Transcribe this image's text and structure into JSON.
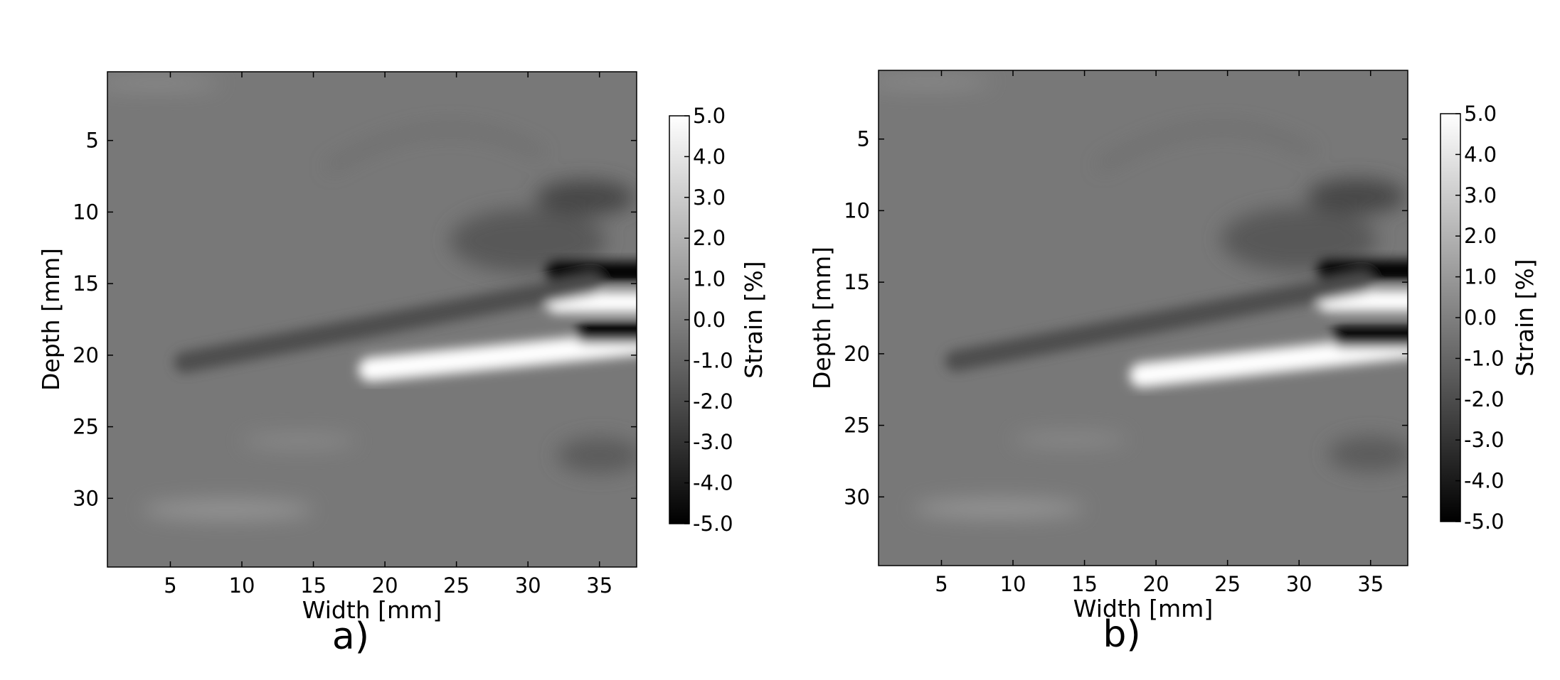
{
  "chart_data": [
    {
      "type": "heatmap",
      "panel_label": "a)",
      "xlabel": "Width [mm]",
      "ylabel": "Depth [mm]",
      "xlim": [
        0.6,
        37.6
      ],
      "ylim": [
        34.8,
        0.2
      ],
      "x_ticks": [
        5,
        10,
        15,
        20,
        25,
        30,
        35
      ],
      "y_ticks": [
        5,
        10,
        15,
        20,
        25,
        30
      ],
      "colorbar": {
        "label": "Strain [%]",
        "range": [
          -5.0,
          5.0
        ],
        "ticks": [
          "5.0",
          "4.0",
          "3.0",
          "2.0",
          "1.0",
          "0.0",
          "-1.0",
          "-2.0",
          "-3.0",
          "-4.0",
          "-5.0"
        ],
        "colormap": "grayscale"
      },
      "features": [
        {
          "kind": "high-strain-band",
          "strain": 5.0,
          "x": [
            19,
            37.6
          ],
          "depth": [
            21,
            19
          ]
        },
        {
          "kind": "high-strain-band",
          "strain": 5.0,
          "x": [
            32,
            37.6
          ],
          "depth": [
            16.3,
            16.3
          ]
        },
        {
          "kind": "low-strain-band",
          "strain": -5.0,
          "x": [
            32,
            37.6
          ],
          "depth": [
            14.2,
            14.2
          ]
        },
        {
          "kind": "low-strain-band",
          "strain": -5.0,
          "x": [
            34,
            37.6
          ],
          "depth": [
            18.4,
            18.4
          ]
        },
        {
          "kind": "negative-layer",
          "strain": -2.0,
          "x": [
            6,
            33
          ],
          "depth": [
            20.5,
            15
          ]
        }
      ]
    },
    {
      "type": "heatmap",
      "panel_label": "b)",
      "xlabel": "Width [mm]",
      "ylabel": "Depth [mm]",
      "xlim": [
        0.6,
        37.6
      ],
      "ylim": [
        34.8,
        0.2
      ],
      "x_ticks": [
        5,
        10,
        15,
        20,
        25,
        30,
        35
      ],
      "y_ticks": [
        5,
        10,
        15,
        20,
        25,
        30
      ],
      "colorbar": {
        "label": "Strain [%]",
        "range": [
          -5.0,
          5.0
        ],
        "ticks": [
          "5.0",
          "4.0",
          "3.0",
          "2.0",
          "1.0",
          "0.0",
          "-1.0",
          "-2.0",
          "-3.0",
          "-4.0",
          "-5.0"
        ],
        "colormap": "grayscale"
      },
      "features": [
        {
          "kind": "high-strain-band",
          "strain": 5.0,
          "x": [
            19,
            37.6
          ],
          "depth": [
            21.5,
            19.3
          ]
        },
        {
          "kind": "high-strain-band",
          "strain": 5.0,
          "x": [
            32,
            37.6
          ],
          "depth": [
            16.3,
            16.3
          ]
        },
        {
          "kind": "low-strain-band",
          "strain": -5.0,
          "x": [
            32,
            37.6
          ],
          "depth": [
            14.2,
            14.2
          ]
        },
        {
          "kind": "low-strain-band",
          "strain": -5.0,
          "x": [
            33,
            37.6
          ],
          "depth": [
            18.8,
            18.8
          ]
        },
        {
          "kind": "negative-layer",
          "strain": -2.0,
          "x": [
            6,
            33
          ],
          "depth": [
            20.5,
            15
          ]
        }
      ]
    }
  ]
}
